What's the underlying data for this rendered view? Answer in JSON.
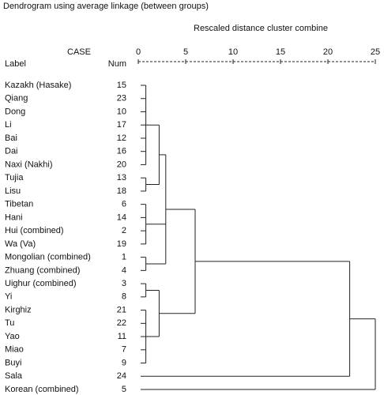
{
  "title": "Dendrogram using average linkage (between groups)",
  "axis": {
    "label": "Rescaled distance cluster combine",
    "lim": [
      0,
      25
    ],
    "ticks": [
      0,
      5,
      10,
      15,
      20,
      25
    ]
  },
  "header": {
    "case": "CASE",
    "label": "Label",
    "num": "Num"
  },
  "leaves": [
    {
      "label": "Kazakh (Hasake)",
      "num": 15
    },
    {
      "label": "Qiang",
      "num": 23
    },
    {
      "label": "Dong",
      "num": 10
    },
    {
      "label": "Li",
      "num": 17
    },
    {
      "label": "Bai",
      "num": 12
    },
    {
      "label": "Dai",
      "num": 16
    },
    {
      "label": "Naxi (Nakhi)",
      "num": 20
    },
    {
      "label": "Tujia",
      "num": 13
    },
    {
      "label": "Lisu",
      "num": 18
    },
    {
      "label": "Tibetan",
      "num": 6
    },
    {
      "label": "Hani",
      "num": 14
    },
    {
      "label": "Hui (combined)",
      "num": 2
    },
    {
      "label": "Wa (Va)",
      "num": 19
    },
    {
      "label": "Mongolian (combined)",
      "num": 1
    },
    {
      "label": "Zhuang (combined)",
      "num": 4
    },
    {
      "label": "Uighur (combined)",
      "num": 3
    },
    {
      "label": "Yi",
      "num": 8
    },
    {
      "label": "Kirghiz",
      "num": 21
    },
    {
      "label": "Tu",
      "num": 22
    },
    {
      "label": "Yao",
      "num": 11
    },
    {
      "label": "Miao",
      "num": 7
    },
    {
      "label": "Buyi",
      "num": 9
    },
    {
      "label": "Sala",
      "num": 24
    },
    {
      "label": "Korean (combined)",
      "num": 5
    }
  ],
  "clusters": [
    {
      "children": [
        0,
        1,
        2,
        3,
        4,
        5,
        6
      ],
      "distance": 0.8
    },
    {
      "children": [
        7,
        8
      ],
      "distance": 0.8
    },
    {
      "children": [
        24,
        25
      ],
      "distance": 2.2
    },
    {
      "children": [
        9,
        10,
        11,
        12
      ],
      "distance": 0.8
    },
    {
      "children": [
        13,
        14
      ],
      "distance": 0.8
    },
    {
      "children": [
        26,
        27,
        28
      ],
      "distance": 2.9
    },
    {
      "children": [
        15,
        16
      ],
      "distance": 0.8
    },
    {
      "children": [
        17,
        18,
        19,
        20,
        21
      ],
      "distance": 0.8
    },
    {
      "children": [
        30,
        31
      ],
      "distance": 2.2
    },
    {
      "children": [
        29,
        32
      ],
      "distance": 6
    },
    {
      "children": [
        33,
        22
      ],
      "distance": 22.3
    },
    {
      "children": [
        34,
        23
      ],
      "distance": 25
    }
  ]
}
